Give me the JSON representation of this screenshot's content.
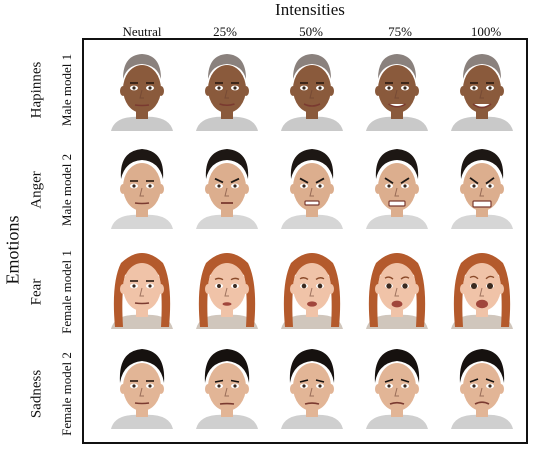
{
  "figure": {
    "title": "Intensities",
    "y_axis_label": "Emotions",
    "columns": [
      "Neutral",
      "25%",
      "50%",
      "75%",
      "100%"
    ],
    "rows": [
      {
        "emotion": "Hapinnes",
        "model": "Male model 1",
        "skin": "#8a5a3c",
        "hair": "#2a1a12",
        "hair_style": "shaved",
        "cloth": "#c9c9c9"
      },
      {
        "emotion": "Anger",
        "model": "Male model 2",
        "skin": "#dcae8e",
        "hair": "#1d1714",
        "hair_style": "short",
        "cloth": "#d6d6d6"
      },
      {
        "emotion": "Fear",
        "model": "Female model 1",
        "skin": "#f0c3a8",
        "hair": "#b45a2c",
        "hair_style": "long",
        "cloth": "#d0c6bc"
      },
      {
        "emotion": "Sadness",
        "model": "Female model 2",
        "skin": "#e2b596",
        "hair": "#16110f",
        "hair_style": "back",
        "cloth": "#cfcfcf"
      }
    ]
  }
}
